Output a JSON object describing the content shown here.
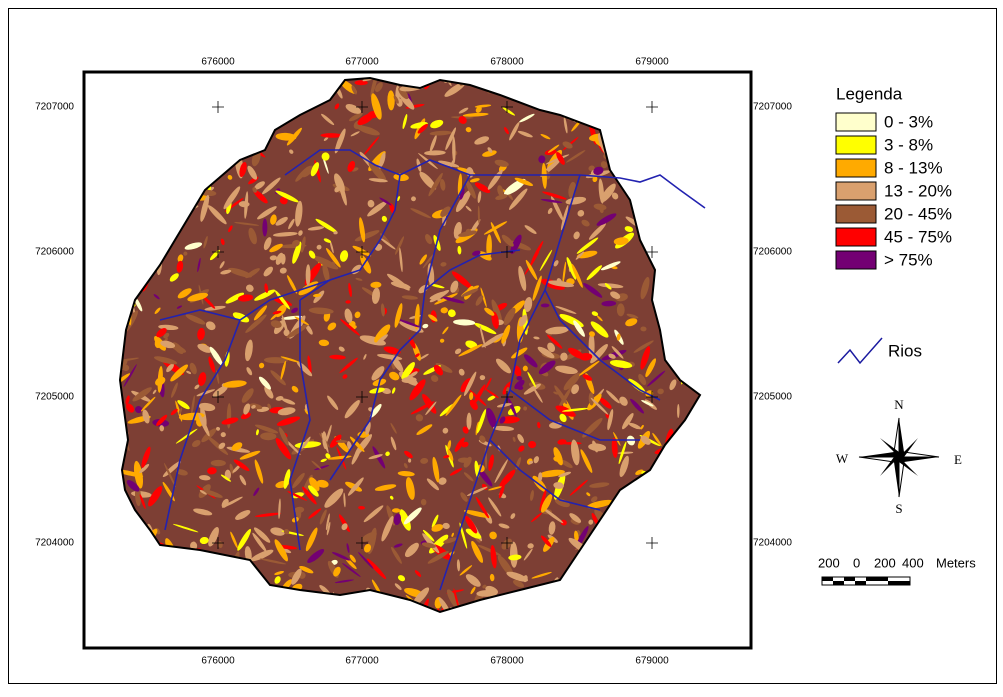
{
  "map": {
    "x_coordinates": [
      "676000",
      "677000",
      "678000",
      "679000"
    ],
    "y_coordinates": [
      "7207000",
      "7206000",
      "7205000",
      "7204000"
    ],
    "legend": {
      "title": "Legenda",
      "classes": [
        {
          "label": "0 - 3%",
          "color": "#ffffcc"
        },
        {
          "label": "3 - 8%",
          "color": "#ffff00"
        },
        {
          "label": "8 - 13%",
          "color": "#ffaa00"
        },
        {
          "label": "13 - 20%",
          "color": "#d9a06e"
        },
        {
          "label": "20 - 45%",
          "color": "#9b5a35"
        },
        {
          "label": "45 - 75%",
          "color": "#ff0000"
        },
        {
          "label": "> 75%",
          "color": "#730073"
        }
      ],
      "rivers": "Rios"
    },
    "compass": {
      "north": "N",
      "south": "S",
      "east": "E",
      "west": "W"
    },
    "scale_bar": [
      "200",
      "0",
      "200",
      "400",
      "Meters"
    ]
  }
}
